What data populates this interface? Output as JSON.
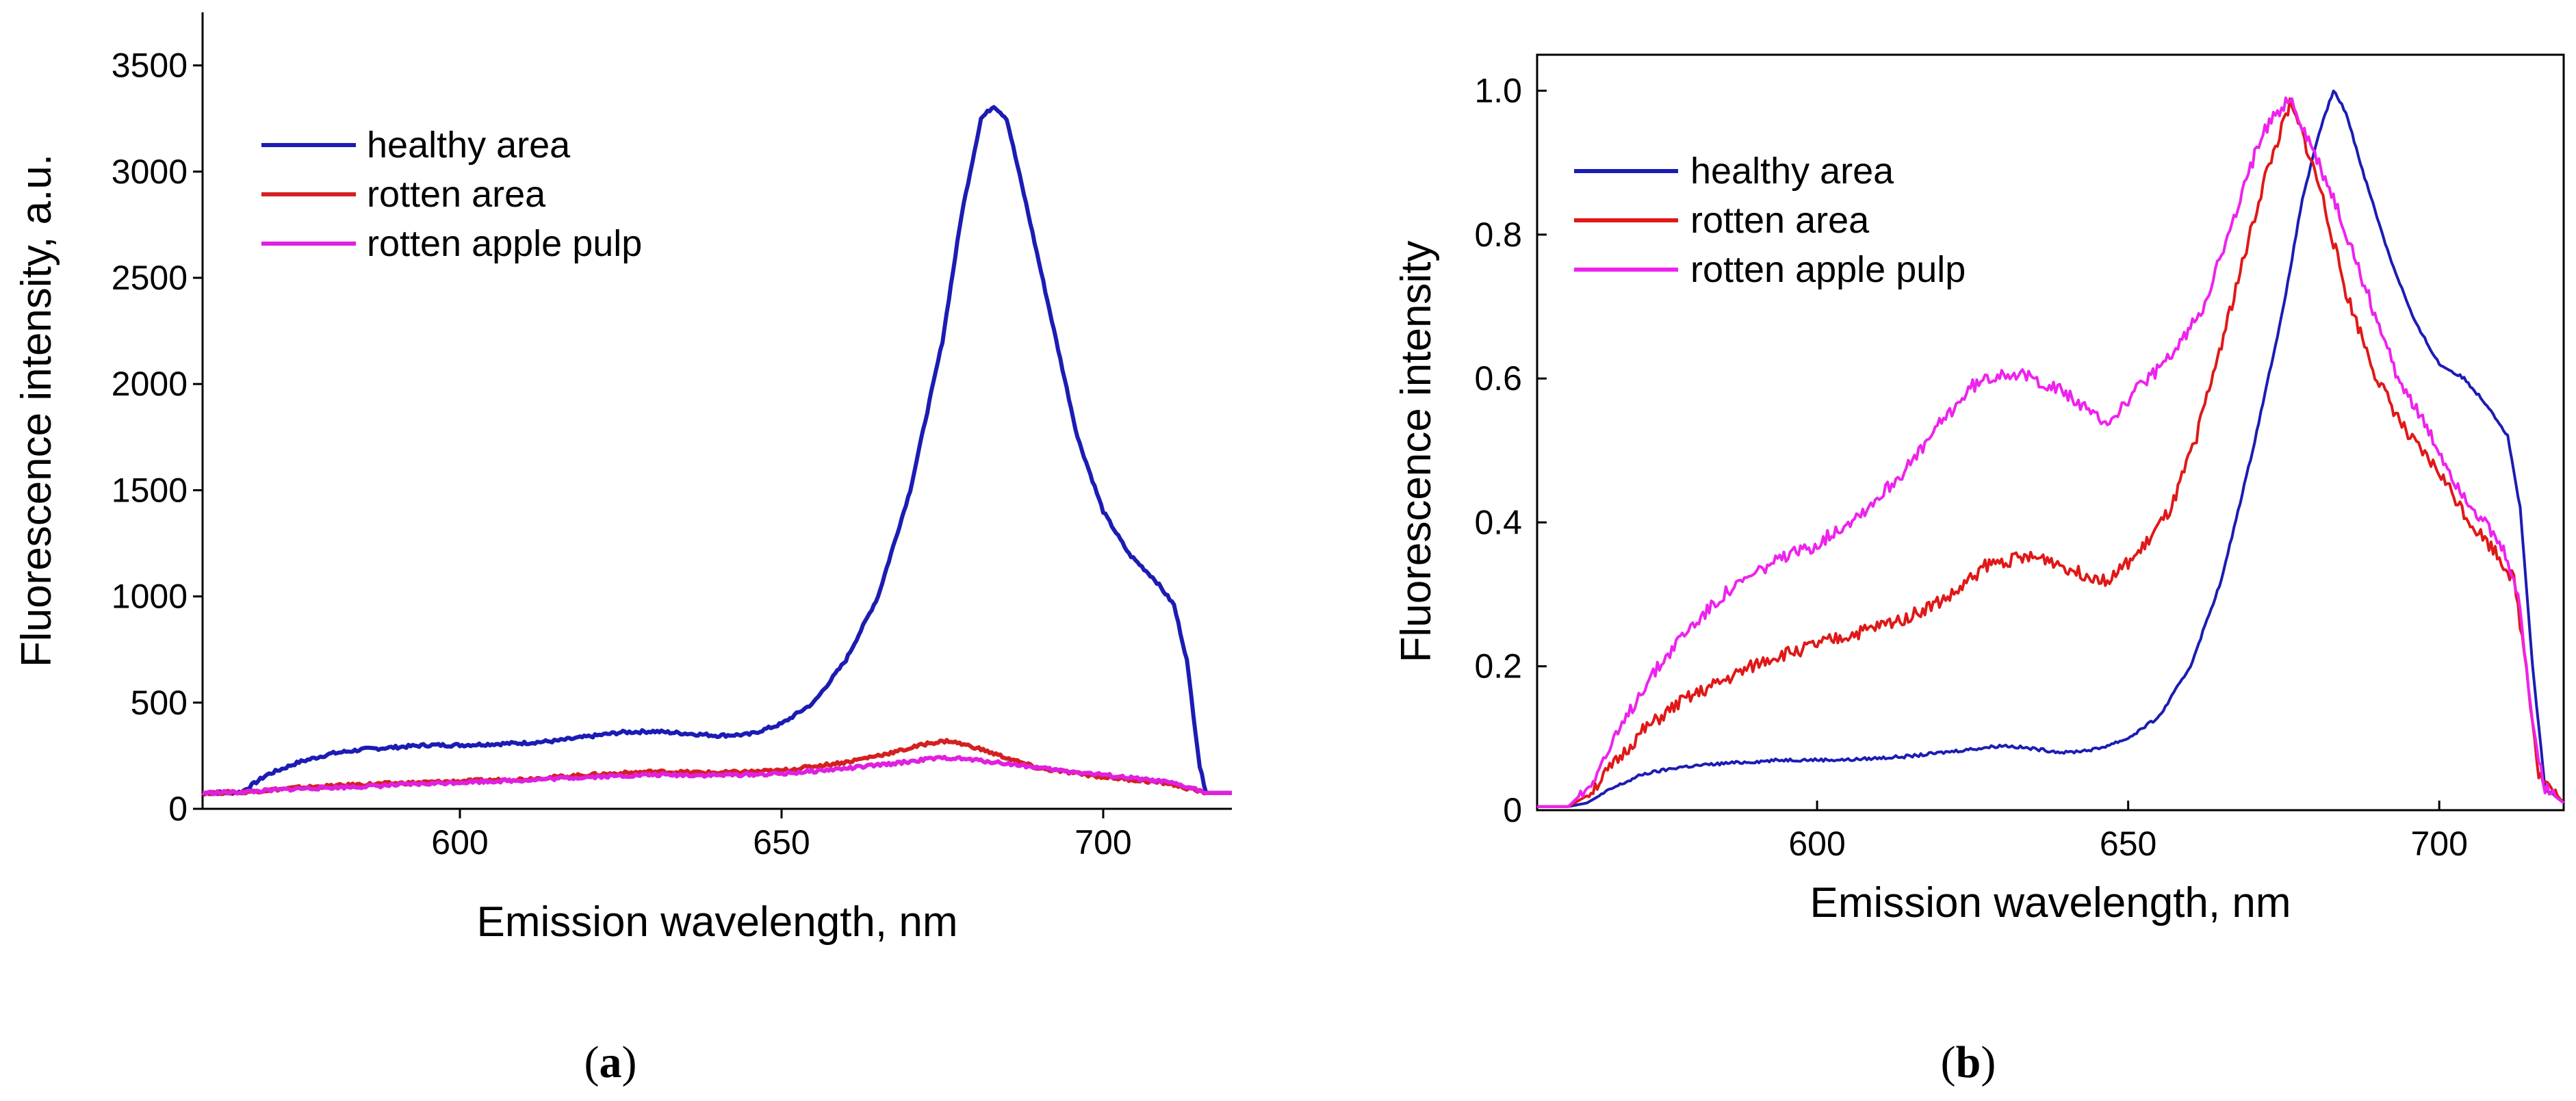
{
  "chart_data": [
    {
      "panel_label": "a",
      "type": "line",
      "xlabel": "Emission wavelength, nm",
      "ylabel": "Fluorescence intensity, a.u.",
      "xlim": [
        560,
        720
      ],
      "ylim": [
        0,
        3750
      ],
      "x_ticks": [
        600,
        650,
        700
      ],
      "y_ticks": [
        0,
        500,
        1000,
        1500,
        2000,
        2500,
        3000,
        3500
      ],
      "legend_position": "top-left",
      "series": [
        {
          "name": "healthy area",
          "color": "#1c1cb4",
          "points": [
            [
              560,
              75
            ],
            [
              566,
              78
            ],
            [
              570,
              160
            ],
            [
              575,
              220
            ],
            [
              580,
              260
            ],
            [
              585,
              280
            ],
            [
              590,
              290
            ],
            [
              595,
              300
            ],
            [
              600,
              300
            ],
            [
              605,
              305
            ],
            [
              610,
              310
            ],
            [
              615,
              320
            ],
            [
              620,
              340
            ],
            [
              625,
              360
            ],
            [
              630,
              365
            ],
            [
              635,
              355
            ],
            [
              640,
              345
            ],
            [
              645,
              350
            ],
            [
              650,
              400
            ],
            [
              655,
              500
            ],
            [
              660,
              700
            ],
            [
              665,
              1000
            ],
            [
              670,
              1500
            ],
            [
              675,
              2200
            ],
            [
              678,
              2800
            ],
            [
              681,
              3250
            ],
            [
              683,
              3310
            ],
            [
              685,
              3250
            ],
            [
              688,
              2850
            ],
            [
              692,
              2300
            ],
            [
              696,
              1750
            ],
            [
              700,
              1400
            ],
            [
              704,
              1200
            ],
            [
              708,
              1080
            ],
            [
              711,
              960
            ],
            [
              713,
              700
            ],
            [
              715,
              200
            ],
            [
              716,
              75
            ],
            [
              720,
              75
            ]
          ]
        },
        {
          "name": "rotten area",
          "color": "#d42020",
          "points": [
            [
              560,
              75
            ],
            [
              566,
              78
            ],
            [
              575,
              100
            ],
            [
              585,
              115
            ],
            [
              600,
              130
            ],
            [
              610,
              140
            ],
            [
              620,
              160
            ],
            [
              630,
              175
            ],
            [
              640,
              170
            ],
            [
              650,
              180
            ],
            [
              660,
              220
            ],
            [
              668,
              270
            ],
            [
              673,
              310
            ],
            [
              676,
              320
            ],
            [
              680,
              290
            ],
            [
              685,
              240
            ],
            [
              690,
              190
            ],
            [
              700,
              150
            ],
            [
              710,
              120
            ],
            [
              714,
              90
            ],
            [
              716,
              75
            ],
            [
              720,
              75
            ]
          ]
        },
        {
          "name": "rotten apple pulp",
          "color": "#e020e0",
          "points": [
            [
              560,
              75
            ],
            [
              566,
              78
            ],
            [
              575,
              95
            ],
            [
              585,
              105
            ],
            [
              600,
              125
            ],
            [
              610,
              135
            ],
            [
              620,
              150
            ],
            [
              630,
              160
            ],
            [
              640,
              158
            ],
            [
              650,
              165
            ],
            [
              660,
              190
            ],
            [
              668,
              215
            ],
            [
              673,
              235
            ],
            [
              676,
              240
            ],
            [
              680,
              230
            ],
            [
              686,
              210
            ],
            [
              692,
              185
            ],
            [
              700,
              160
            ],
            [
              710,
              125
            ],
            [
              714,
              95
            ],
            [
              716,
              75
            ],
            [
              720,
              75
            ]
          ]
        }
      ]
    },
    {
      "panel_label": "b",
      "type": "line",
      "xlabel": "Emission wavelength, nm",
      "ylabel": "Fluorescence intensity",
      "xlim": [
        555,
        720
      ],
      "ylim": [
        0,
        1.05
      ],
      "x_ticks": [
        600,
        650,
        700
      ],
      "y_ticks": [
        "0",
        "0.2",
        "0.4",
        "0.6",
        "0.8",
        "1.0"
      ],
      "legend_position": "top-left",
      "series": [
        {
          "name": "healthy area",
          "color": "#1c1cb4",
          "points": [
            [
              555,
              0.005
            ],
            [
              560,
              0.005
            ],
            [
              563,
              0.01
            ],
            [
              567,
              0.03
            ],
            [
              572,
              0.05
            ],
            [
              578,
              0.06
            ],
            [
              585,
              0.065
            ],
            [
              595,
              0.07
            ],
            [
              605,
              0.07
            ],
            [
              615,
              0.075
            ],
            [
              625,
              0.085
            ],
            [
              630,
              0.09
            ],
            [
              635,
              0.085
            ],
            [
              640,
              0.08
            ],
            [
              645,
              0.085
            ],
            [
              650,
              0.1
            ],
            [
              655,
              0.13
            ],
            [
              660,
              0.2
            ],
            [
              665,
              0.32
            ],
            [
              670,
              0.5
            ],
            [
              675,
              0.7
            ],
            [
              678,
              0.85
            ],
            [
              681,
              0.95
            ],
            [
              683,
              1.0
            ],
            [
              685,
              0.97
            ],
            [
              688,
              0.88
            ],
            [
              692,
              0.77
            ],
            [
              696,
              0.68
            ],
            [
              700,
              0.62
            ],
            [
              704,
              0.6
            ],
            [
              708,
              0.56
            ],
            [
              711,
              0.52
            ],
            [
              713,
              0.42
            ],
            [
              715,
              0.2
            ],
            [
              717,
              0.03
            ],
            [
              720,
              0.01
            ]
          ]
        },
        {
          "name": "rotten area",
          "color": "#e01818",
          "points": [
            [
              555,
              0.005
            ],
            [
              560,
              0.005
            ],
            [
              563,
              0.02
            ],
            [
              567,
              0.06
            ],
            [
              572,
              0.11
            ],
            [
              578,
              0.15
            ],
            [
              585,
              0.18
            ],
            [
              592,
              0.21
            ],
            [
              600,
              0.23
            ],
            [
              608,
              0.25
            ],
            [
              615,
              0.27
            ],
            [
              622,
              0.3
            ],
            [
              627,
              0.34
            ],
            [
              632,
              0.35
            ],
            [
              637,
              0.35
            ],
            [
              642,
              0.33
            ],
            [
              647,
              0.32
            ],
            [
              652,
              0.36
            ],
            [
              657,
              0.42
            ],
            [
              661,
              0.52
            ],
            [
              665,
              0.65
            ],
            [
              669,
              0.78
            ],
            [
              672,
              0.88
            ],
            [
              674,
              0.93
            ],
            [
              676,
              0.98
            ],
            [
              678,
              0.94
            ],
            [
              681,
              0.86
            ],
            [
              685,
              0.72
            ],
            [
              690,
              0.6
            ],
            [
              695,
              0.52
            ],
            [
              700,
              0.47
            ],
            [
              705,
              0.4
            ],
            [
              709,
              0.36
            ],
            [
              712,
              0.32
            ],
            [
              714,
              0.2
            ],
            [
              716,
              0.05
            ],
            [
              720,
              0.01
            ]
          ]
        },
        {
          "name": "rotten apple pulp",
          "color": "#ee22ee",
          "points": [
            [
              555,
              0.005
            ],
            [
              560,
              0.005
            ],
            [
              563,
              0.03
            ],
            [
              567,
              0.09
            ],
            [
              572,
              0.17
            ],
            [
              578,
              0.24
            ],
            [
              585,
              0.3
            ],
            [
              592,
              0.34
            ],
            [
              600,
              0.37
            ],
            [
              608,
              0.42
            ],
            [
              615,
              0.48
            ],
            [
              620,
              0.54
            ],
            [
              625,
              0.59
            ],
            [
              630,
              0.61
            ],
            [
              635,
              0.6
            ],
            [
              640,
              0.58
            ],
            [
              644,
              0.55
            ],
            [
              647,
              0.54
            ],
            [
              652,
              0.59
            ],
            [
              657,
              0.63
            ],
            [
              662,
              0.7
            ],
            [
              667,
              0.82
            ],
            [
              671,
              0.93
            ],
            [
              674,
              0.97
            ],
            [
              676,
              0.99
            ],
            [
              679,
              0.93
            ],
            [
              683,
              0.85
            ],
            [
              688,
              0.73
            ],
            [
              693,
              0.61
            ],
            [
              698,
              0.53
            ],
            [
              703,
              0.45
            ],
            [
              708,
              0.39
            ],
            [
              711,
              0.35
            ],
            [
              713,
              0.28
            ],
            [
              715,
              0.12
            ],
            [
              717,
              0.03
            ],
            [
              720,
              0.01
            ]
          ]
        }
      ]
    }
  ]
}
